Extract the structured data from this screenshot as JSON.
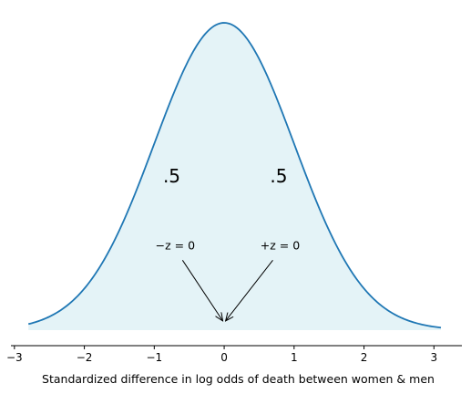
{
  "chart_data": {
    "type": "area",
    "distribution": "standard-normal-density",
    "x_range": [
      -2.8,
      3.1
    ],
    "xlim": [
      -3.05,
      3.4
    ],
    "x_ticks": [
      -3,
      -2,
      -1,
      0,
      1,
      2,
      3
    ],
    "x_tick_labels": [
      "−3",
      "−2",
      "−1",
      "0",
      "1",
      "2",
      "3"
    ],
    "xlabel": "Standardized difference in log odds of death between women & men",
    "ylabel": "",
    "title": "",
    "grid": false,
    "curve_color": "#1f77b4",
    "fill_color": "#e4f3f7",
    "area_labels": [
      {
        "text": ".5",
        "x": -0.75,
        "y": 0.2
      },
      {
        "text": ".5",
        "x": 0.78,
        "y": 0.2
      }
    ],
    "annotations": [
      {
        "text": "−z = 0",
        "text_x": -0.7,
        "text_y": 0.105,
        "arrow_to_x": -0.02,
        "arrow_to_y": 0.012
      },
      {
        "text": "+z = 0",
        "text_x": 0.8,
        "text_y": 0.105,
        "arrow_to_x": 0.02,
        "arrow_to_y": 0.012
      }
    ]
  }
}
